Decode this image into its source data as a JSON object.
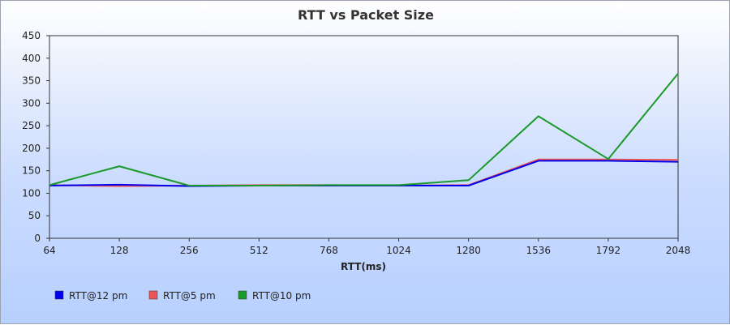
{
  "chart_data": {
    "type": "line",
    "title": "RTT vs Packet Size",
    "xlabel": "RTT(ms)",
    "ylabel": "",
    "categories": [
      "64",
      "128",
      "256",
      "512",
      "768",
      "1024",
      "1280",
      "1536",
      "1792",
      "2048"
    ],
    "ylim": [
      0,
      450
    ],
    "yticks": [
      0,
      50,
      100,
      150,
      200,
      250,
      300,
      350,
      400,
      450
    ],
    "grid": false,
    "legend_position": "bottom-left",
    "series": [
      {
        "name": "RTT@12 pm",
        "color": "#0000ee",
        "values": [
          117,
          119,
          116,
          117,
          117,
          117,
          117,
          172,
          172,
          170
        ]
      },
      {
        "name": "RTT@5 pm",
        "color": "#ee5555",
        "values": [
          118,
          116,
          117,
          118,
          118,
          117,
          118,
          175,
          175,
          174
        ]
      },
      {
        "name": "RTT@10 pm",
        "color": "#1a9a2a",
        "values": [
          118,
          160,
          117,
          117,
          118,
          118,
          129,
          271,
          176,
          366
        ]
      }
    ]
  }
}
